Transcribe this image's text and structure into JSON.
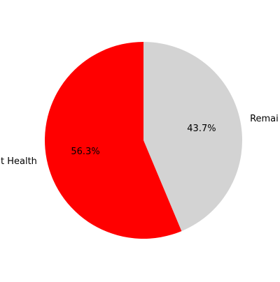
{
  "chart_data": {
    "type": "pie",
    "slices": [
      {
        "label": "Remai",
        "value": 43.7,
        "pct_label": "43.7%",
        "color": "#d3d3d3"
      },
      {
        "label": "t Health",
        "value": 56.3,
        "pct_label": "56.3%",
        "color": "#ff0000"
      }
    ],
    "start_angle_deg": 90,
    "direction": "clockwise",
    "legend": "none"
  }
}
